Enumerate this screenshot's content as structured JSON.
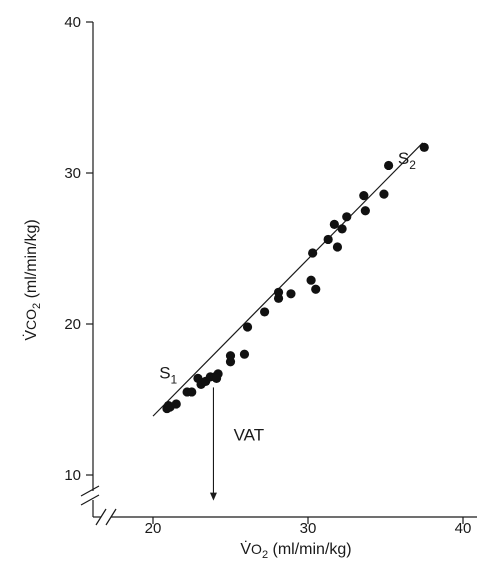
{
  "chart_data": {
    "type": "scatter",
    "xlabel": {
      "dot": "V̇",
      "sym": "O",
      "sub": "2",
      "unit": " (ml/min/kg)"
    },
    "ylabel": {
      "dot": "V̇",
      "sym": "CO",
      "sub": "2",
      "unit": " (ml/min/kg)"
    },
    "xlim": [
      15,
      41
    ],
    "ylim": [
      8,
      40
    ],
    "x_ticks": [
      20,
      30,
      40
    ],
    "y_ticks": [
      10,
      20,
      30,
      40
    ],
    "x_tick_labels": [
      "20",
      "30",
      "40"
    ],
    "y_tick_labels": [
      "10",
      "20",
      "30",
      "40"
    ],
    "axis_break": true,
    "grid": false,
    "series": [
      {
        "points": [
          [
            20.9,
            14.4
          ],
          [
            21.0,
            14.6
          ],
          [
            21.1,
            14.5
          ],
          [
            21.5,
            14.7
          ],
          [
            22.2,
            15.5
          ],
          [
            22.5,
            15.5
          ],
          [
            22.9,
            16.4
          ],
          [
            23.1,
            16.0
          ],
          [
            23.4,
            16.2
          ],
          [
            23.7,
            16.5
          ],
          [
            24.0,
            16.5
          ],
          [
            24.2,
            16.7
          ],
          [
            24.1,
            16.4
          ],
          [
            25.0,
            17.5
          ],
          [
            25.0,
            17.9
          ],
          [
            25.9,
            18.0
          ],
          [
            26.1,
            19.8
          ],
          [
            27.2,
            20.8
          ],
          [
            28.1,
            21.7
          ],
          [
            28.1,
            22.1
          ],
          [
            28.9,
            22.0
          ],
          [
            30.2,
            22.9
          ],
          [
            30.5,
            22.3
          ],
          [
            30.3,
            24.7
          ],
          [
            31.3,
            25.6
          ],
          [
            31.7,
            26.6
          ],
          [
            31.9,
            25.1
          ],
          [
            32.2,
            26.3
          ],
          [
            32.5,
            27.1
          ],
          [
            33.6,
            28.5
          ],
          [
            33.7,
            27.5
          ],
          [
            34.9,
            28.6
          ],
          [
            35.2,
            30.5
          ],
          [
            37.5,
            31.7
          ]
        ]
      }
    ],
    "fit_line": {
      "x": [
        20.0,
        37.4
      ],
      "y": [
        13.9,
        32.0
      ]
    },
    "annotations": [
      {
        "id": "s1",
        "text": "S",
        "sub": "1",
        "x": 20.4,
        "y": 16.4
      },
      {
        "id": "s2",
        "text": "S",
        "sub": "2",
        "x": 35.8,
        "y": 30.6
      },
      {
        "id": "vat",
        "text": "VAT",
        "x": 25.2,
        "y": 12.3
      }
    ],
    "vat_marker": {
      "x": 23.9,
      "y_from": 15.8,
      "y_to": 8.3
    }
  }
}
